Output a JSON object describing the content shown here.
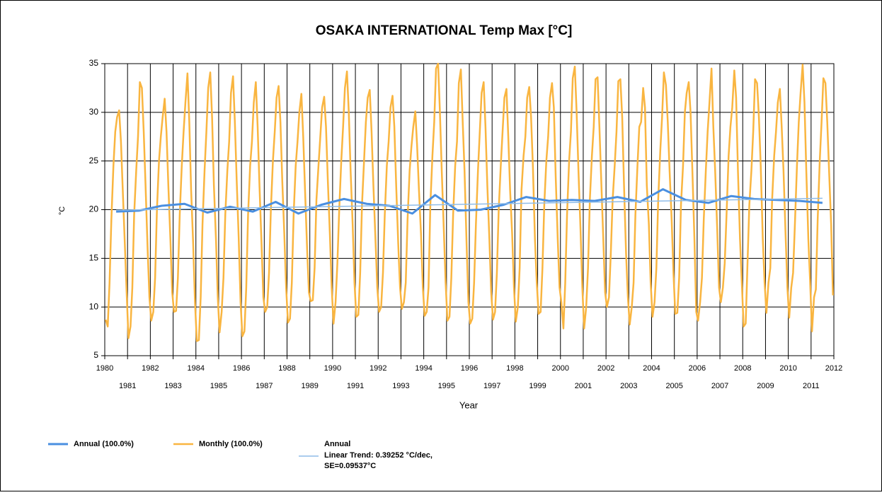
{
  "chart_data": {
    "type": "line",
    "title": "OSAKA INTERNATIONAL Temp Max [°C]",
    "xlabel": "Year",
    "ylabel": "°C",
    "xlim": [
      1980,
      2012
    ],
    "xticks": [
      1980,
      1981,
      1982,
      1983,
      1984,
      1985,
      1986,
      1987,
      1988,
      1989,
      1990,
      1991,
      1992,
      1993,
      1994,
      1995,
      1996,
      1997,
      1998,
      1999,
      2000,
      2001,
      2002,
      2003,
      2004,
      2005,
      2006,
      2007,
      2008,
      2009,
      2010,
      2011,
      2012
    ],
    "ylim": [
      5,
      35
    ],
    "yticks": [
      5,
      10,
      15,
      20,
      25,
      30,
      35
    ],
    "grid": true,
    "legend": "bottom",
    "series": [
      {
        "name": "Annual (100.0%)",
        "color": "#4a8fe0",
        "x": [
          1980.5,
          1981.5,
          1982.5,
          1983.5,
          1984.5,
          1985.5,
          1986.5,
          1987.5,
          1988.5,
          1989.5,
          1990.5,
          1991.5,
          1992.5,
          1993.5,
          1994.5,
          1995.5,
          1996.5,
          1997.5,
          1998.5,
          1999.5,
          2000.5,
          2001.5,
          2002.5,
          2003.5,
          2004.5,
          2005.5,
          2006.5,
          2007.5,
          2008.5,
          2009.5,
          2010.5,
          2011.5
        ],
        "values": [
          19.8,
          19.9,
          20.4,
          20.6,
          19.7,
          20.3,
          19.8,
          20.8,
          19.6,
          20.5,
          21.1,
          20.6,
          20.4,
          19.6,
          21.5,
          19.9,
          20.0,
          20.5,
          21.3,
          20.9,
          21.0,
          20.9,
          21.3,
          20.8,
          22.1,
          21.0,
          20.7,
          21.4,
          21.1,
          21.0,
          20.9,
          20.7
        ]
      },
      {
        "name": "Monthly (100.0%)",
        "color": "#f9b540",
        "x": [
          1980.04,
          1980.13,
          1980.21,
          1980.29,
          1980.38,
          1980.46,
          1980.54,
          1980.63,
          1980.71,
          1980.79,
          1980.88,
          1980.96,
          1981.04,
          1981.13,
          1981.21,
          1981.29,
          1981.38,
          1981.46,
          1981.54,
          1981.63,
          1981.71,
          1981.79,
          1981.88,
          1981.96,
          1982.04,
          1982.13,
          1982.21,
          1982.29,
          1982.38,
          1982.46,
          1982.54,
          1982.63,
          1982.71,
          1982.79,
          1982.88,
          1982.96,
          1983.04,
          1983.13,
          1983.21,
          1983.29,
          1983.38,
          1983.46,
          1983.54,
          1983.63,
          1983.71,
          1983.79,
          1983.88,
          1983.96,
          1984.04,
          1984.13,
          1984.21,
          1984.29,
          1984.38,
          1984.46,
          1984.54,
          1984.63,
          1984.71,
          1984.79,
          1984.88,
          1984.96,
          1985.04,
          1985.13,
          1985.21,
          1985.29,
          1985.38,
          1985.46,
          1985.54,
          1985.63,
          1985.71,
          1985.79,
          1985.88,
          1985.96,
          1986.04,
          1986.13,
          1986.21,
          1986.29,
          1986.38,
          1986.46,
          1986.54,
          1986.63,
          1986.71,
          1986.79,
          1986.88,
          1986.96,
          1987.04,
          1987.13,
          1987.21,
          1987.29,
          1987.38,
          1987.46,
          1987.54,
          1987.63,
          1987.71,
          1987.79,
          1987.88,
          1987.96,
          1988.04,
          1988.13,
          1988.21,
          1988.29,
          1988.38,
          1988.46,
          1988.54,
          1988.63,
          1988.71,
          1988.79,
          1988.88,
          1988.96,
          1989.04,
          1989.13,
          1989.21,
          1989.29,
          1989.38,
          1989.46,
          1989.54,
          1989.63,
          1989.71,
          1989.79,
          1989.88,
          1989.96,
          1990.04,
          1990.13,
          1990.21,
          1990.29,
          1990.38,
          1990.46,
          1990.54,
          1990.63,
          1990.71,
          1990.79,
          1990.88,
          1990.96,
          1991.04,
          1991.13,
          1991.21,
          1991.29,
          1991.38,
          1991.46,
          1991.54,
          1991.63,
          1991.71,
          1991.79,
          1991.88,
          1991.96,
          1992.04,
          1992.13,
          1992.21,
          1992.29,
          1992.38,
          1992.46,
          1992.54,
          1992.63,
          1992.71,
          1992.79,
          1992.88,
          1992.96,
          1993.04,
          1993.13,
          1993.21,
          1993.29,
          1993.38,
          1993.46,
          1993.54,
          1993.63,
          1993.71,
          1993.79,
          1993.88,
          1993.96,
          1994.04,
          1994.13,
          1994.21,
          1994.29,
          1994.38,
          1994.46,
          1994.54,
          1994.63,
          1994.71,
          1994.79,
          1994.88,
          1994.96,
          1995.04,
          1995.13,
          1995.21,
          1995.29,
          1995.38,
          1995.46,
          1995.54,
          1995.63,
          1995.71,
          1995.79,
          1995.88,
          1995.96,
          1996.04,
          1996.13,
          1996.21,
          1996.29,
          1996.38,
          1996.46,
          1996.54,
          1996.63,
          1996.71,
          1996.79,
          1996.88,
          1996.96,
          1997.04,
          1997.13,
          1997.21,
          1997.29,
          1997.38,
          1997.46,
          1997.54,
          1997.63,
          1997.71,
          1997.79,
          1997.88,
          1997.96,
          1998.04,
          1998.13,
          1998.21,
          1998.29,
          1998.38,
          1998.46,
          1998.54,
          1998.63,
          1998.71,
          1998.79,
          1998.88,
          1998.96,
          1999.04,
          1999.13,
          1999.21,
          1999.29,
          1999.38,
          1999.46,
          1999.54,
          1999.63,
          1999.71,
          1999.79,
          1999.88,
          1999.96,
          2000.04,
          2000.13,
          2000.21,
          2000.29,
          2000.38,
          2000.46,
          2000.54,
          2000.63,
          2000.71,
          2000.79,
          2000.88,
          2000.96,
          2001.04,
          2001.13,
          2001.21,
          2001.29,
          2001.38,
          2001.46,
          2001.54,
          2001.63,
          2001.71,
          2001.79,
          2001.88,
          2001.96,
          2002.04,
          2002.13,
          2002.21,
          2002.29,
          2002.38,
          2002.46,
          2002.54,
          2002.63,
          2002.71,
          2002.79,
          2002.88,
          2002.96,
          2003.04,
          2003.13,
          2003.21,
          2003.29,
          2003.38,
          2003.46,
          2003.54,
          2003.63,
          2003.71,
          2003.79,
          2003.88,
          2003.96,
          2004.04,
          2004.13,
          2004.21,
          2004.29,
          2004.38,
          2004.46,
          2004.54,
          2004.63,
          2004.71,
          2004.79,
          2004.88,
          2004.96,
          2005.04,
          2005.13,
          2005.21,
          2005.29,
          2005.38,
          2005.46,
          2005.54,
          2005.63,
          2005.71,
          2005.79,
          2005.88,
          2005.96,
          2006.04,
          2006.13,
          2006.21,
          2006.29,
          2006.38,
          2006.46,
          2006.54,
          2006.63,
          2006.71,
          2006.79,
          2006.88,
          2006.96,
          2007.04,
          2007.13,
          2007.21,
          2007.29,
          2007.38,
          2007.46,
          2007.54,
          2007.63,
          2007.71,
          2007.79,
          2007.88,
          2007.96,
          2008.04,
          2008.13,
          2008.21,
          2008.29,
          2008.38,
          2008.46,
          2008.54,
          2008.63,
          2008.71,
          2008.79,
          2008.88,
          2008.96,
          2009.04,
          2009.13,
          2009.21,
          2009.29,
          2009.38,
          2009.46,
          2009.54,
          2009.63,
          2009.71,
          2009.79,
          2009.88,
          2009.96,
          2010.04,
          2010.13,
          2010.21,
          2010.29,
          2010.38,
          2010.46,
          2010.54,
          2010.63,
          2010.71,
          2010.79,
          2010.88,
          2010.96,
          2011.04,
          2011.13,
          2011.21,
          2011.29,
          2011.38,
          2011.46,
          2011.54,
          2011.63,
          2011.71,
          2011.79,
          2011.88,
          2011.96
        ],
        "values": [
          8.7,
          8.0,
          12.5,
          19.0,
          24.5,
          28.0,
          29.5,
          30.2,
          27.0,
          22.0,
          16.5,
          11.5,
          6.8,
          8.0,
          12.0,
          19.5,
          24.0,
          27.5,
          33.1,
          32.5,
          28.0,
          22.5,
          16.0,
          11.0,
          8.6,
          9.5,
          13.0,
          20.0,
          25.0,
          27.5,
          29.5,
          31.4,
          28.0,
          22.5,
          17.0,
          11.5,
          9.5,
          9.6,
          13.0,
          19.5,
          24.5,
          28.0,
          31.0,
          34.0,
          29.0,
          22.0,
          16.5,
          10.5,
          6.5,
          6.6,
          11.0,
          18.5,
          24.0,
          28.0,
          32.5,
          34.1,
          29.5,
          22.5,
          17.0,
          11.0,
          7.4,
          9.5,
          13.0,
          19.5,
          24.0,
          27.0,
          32.0,
          33.7,
          29.0,
          23.0,
          17.0,
          10.5,
          7.0,
          7.5,
          12.0,
          19.5,
          24.5,
          27.0,
          31.0,
          33.1,
          28.5,
          22.5,
          16.5,
          11.0,
          9.5,
          10.0,
          13.5,
          20.0,
          25.0,
          28.0,
          31.5,
          32.7,
          29.0,
          23.0,
          17.5,
          12.0,
          8.4,
          8.8,
          12.5,
          19.5,
          24.5,
          27.0,
          30.0,
          31.9,
          27.5,
          22.0,
          16.0,
          11.5,
          10.6,
          10.7,
          14.0,
          21.0,
          24.5,
          27.5,
          30.5,
          31.6,
          28.5,
          23.0,
          17.5,
          12.0,
          8.3,
          10.5,
          14.5,
          20.0,
          25.0,
          28.5,
          32.5,
          34.2,
          30.0,
          24.0,
          18.5,
          12.5,
          9.0,
          9.2,
          13.5,
          20.5,
          25.0,
          29.0,
          31.5,
          32.3,
          28.0,
          22.5,
          17.0,
          12.0,
          9.5,
          10.0,
          13.5,
          19.5,
          24.5,
          27.0,
          30.5,
          31.7,
          28.5,
          22.5,
          16.5,
          12.0,
          9.8,
          10.5,
          12.5,
          19.0,
          24.0,
          26.5,
          28.5,
          30.1,
          26.5,
          22.0,
          17.5,
          12.0,
          9.1,
          9.5,
          12.0,
          20.5,
          25.5,
          29.0,
          34.5,
          35.0,
          30.0,
          24.0,
          18.0,
          12.5,
          8.6,
          9.0,
          13.0,
          19.5,
          24.5,
          27.0,
          33.0,
          34.4,
          29.0,
          24.0,
          16.5,
          10.5,
          8.3,
          8.8,
          12.5,
          18.5,
          24.0,
          28.0,
          32.0,
          33.1,
          28.5,
          22.5,
          17.0,
          11.5,
          8.7,
          9.5,
          13.5,
          20.0,
          24.5,
          28.0,
          31.5,
          32.4,
          27.5,
          22.0,
          17.5,
          12.0,
          8.5,
          10.0,
          14.0,
          22.0,
          25.5,
          27.5,
          31.5,
          32.6,
          29.5,
          24.5,
          17.0,
          12.5,
          9.3,
          9.5,
          14.0,
          20.5,
          25.0,
          27.5,
          31.5,
          33.0,
          30.5,
          23.5,
          17.0,
          12.0,
          10.5,
          7.8,
          12.5,
          19.5,
          25.0,
          28.0,
          33.5,
          34.7,
          30.0,
          24.0,
          18.0,
          12.0,
          7.8,
          10.0,
          14.0,
          21.0,
          25.5,
          28.5,
          33.4,
          33.6,
          28.5,
          23.0,
          17.0,
          11.5,
          10.0,
          11.0,
          15.5,
          21.0,
          24.5,
          28.0,
          33.2,
          33.4,
          29.5,
          22.5,
          15.5,
          11.0,
          8.2,
          10.0,
          12.5,
          19.5,
          24.5,
          28.5,
          29.0,
          32.5,
          30.5,
          22.5,
          18.5,
          12.5,
          9.0,
          10.5,
          14.0,
          21.0,
          26.0,
          29.5,
          34.1,
          32.8,
          29.0,
          24.0,
          19.0,
          13.5,
          9.3,
          9.4,
          13.0,
          20.5,
          24.5,
          30.0,
          32.0,
          33.1,
          30.0,
          24.0,
          17.0,
          9.5,
          8.6,
          10.5,
          13.0,
          19.0,
          24.0,
          28.0,
          31.0,
          34.5,
          28.5,
          24.0,
          18.0,
          12.0,
          10.5,
          12.0,
          14.5,
          19.5,
          25.5,
          28.5,
          30.5,
          34.3,
          31.5,
          24.0,
          17.0,
          12.5,
          8.0,
          8.3,
          14.5,
          20.5,
          24.0,
          28.0,
          33.4,
          33.0,
          29.5,
          24.5,
          17.0,
          12.5,
          9.4,
          12.5,
          14.0,
          21.0,
          25.5,
          28.0,
          31.0,
          32.4,
          28.5,
          24.0,
          17.5,
          12.0,
          8.9,
          12.0,
          13.5,
          18.5,
          24.5,
          29.0,
          32.0,
          34.9,
          31.0,
          24.0,
          17.0,
          12.5,
          7.5,
          11.0,
          11.8,
          19.0,
          25.0,
          29.0,
          33.5,
          33.0,
          29.0,
          24.0,
          18.5,
          11.2
        ]
      },
      {
        "name": "Annual",
        "trend_label": "Linear Trend: 0.39252 °C/dec,",
        "se_label": "SE=0.09537°C",
        "color": "#8fbce8",
        "x": [
          1980.5,
          2011.5
        ],
        "values": [
          19.95,
          21.17
        ]
      }
    ]
  }
}
